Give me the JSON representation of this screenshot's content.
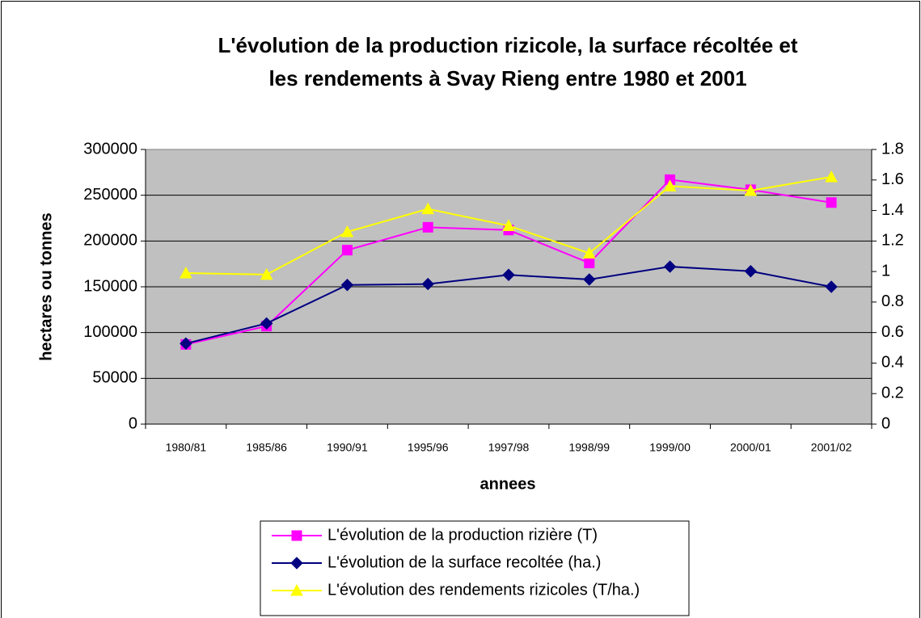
{
  "chart_data": {
    "type": "line",
    "title": [
      "L'évolution de la production rizicole, la surface récoltée et",
      "les rendements à Svay Rieng entre 1980 et 2001"
    ],
    "xlabel": "annees",
    "ylabel": "hectares ou tonnes",
    "categories": [
      "1980/81",
      "1985/86",
      "1990/91",
      "1995/96",
      "1997/98",
      "1998/99",
      "1999/00",
      "2000/01",
      "2001/02"
    ],
    "series": [
      {
        "name": "L'évolution de la production rizière (T)",
        "color": "#ff00ff",
        "marker": "square",
        "values": [
          87000,
          107000,
          190000,
          215000,
          212000,
          176000,
          267000,
          256000,
          242000
        ]
      },
      {
        "name": "L'évolution de la surface recoltée (ha.)",
        "color": "#000080",
        "marker": "diamond",
        "values": [
          88000,
          110000,
          152000,
          153000,
          163000,
          158000,
          172000,
          167000,
          150000
        ]
      },
      {
        "name": "L'évolution des rendements rizicoles (T/ha.)",
        "color": "#ffff00",
        "marker": "triangle",
        "axis": "y2",
        "values": [
          0.99,
          0.98,
          1.26,
          1.41,
          1.3,
          1.12,
          1.56,
          1.53,
          1.62
        ]
      }
    ],
    "ylim": [
      0,
      300000
    ],
    "yticks": [
      0,
      50000,
      100000,
      150000,
      200000,
      250000,
      300000
    ],
    "y2lim": [
      0,
      1.8
    ],
    "y2ticks": [
      0,
      0.2,
      0.4,
      0.6,
      0.8,
      1,
      1.2,
      1.4,
      1.6,
      1.8
    ],
    "grid": true,
    "legend": "bottom"
  }
}
